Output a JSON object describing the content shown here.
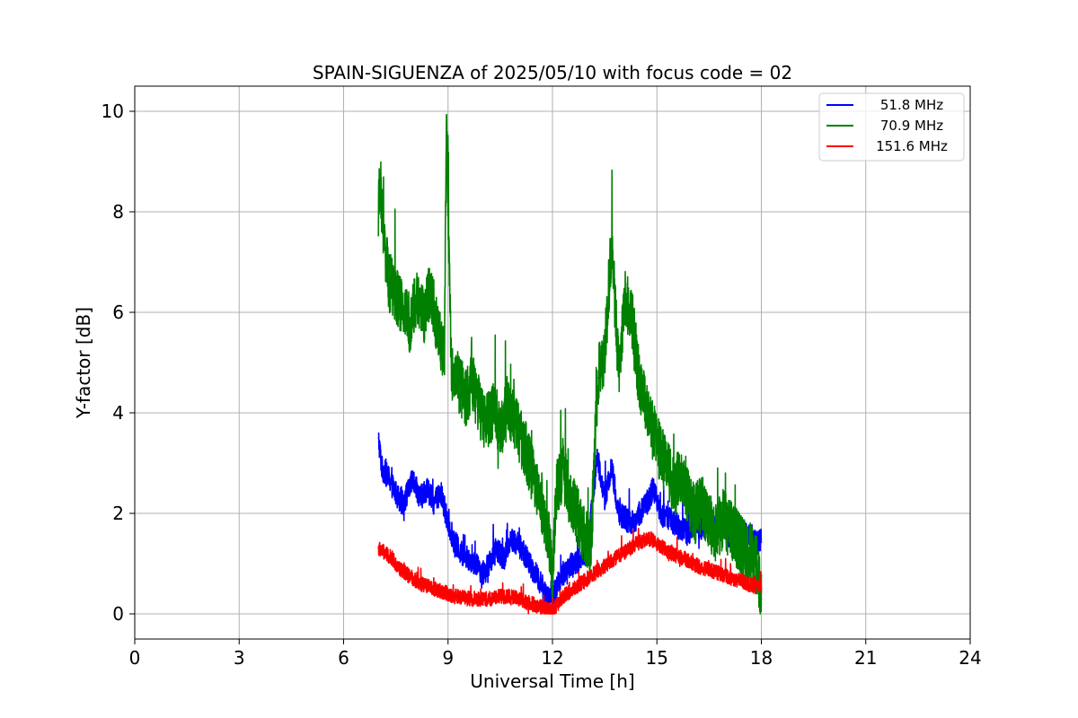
{
  "chart_data": {
    "type": "line",
    "title": "SPAIN-SIGUENZA of 2025/05/10 with focus code = 02",
    "xlabel": "Universal Time [h]",
    "ylabel": "Y-factor [dB]",
    "xlim": [
      0,
      24
    ],
    "ylim": [
      -0.5,
      10.5
    ],
    "xticks": [
      0,
      3,
      6,
      9,
      12,
      15,
      18,
      21,
      24
    ],
    "yticks": [
      0,
      2,
      4,
      6,
      8,
      10
    ],
    "xtick_labels": [
      "0",
      "3",
      "6",
      "9",
      "12",
      "15",
      "18",
      "21",
      "24"
    ],
    "ytick_labels": [
      "0",
      "2",
      "4",
      "6",
      "8",
      "10"
    ],
    "grid": true,
    "legend_position": "top-right",
    "series": [
      {
        "name": "51.8 MHz",
        "color": "#0000ff",
        "x": [
          7.0,
          7.1,
          7.3,
          7.5,
          7.7,
          7.9,
          8.0,
          8.2,
          8.4,
          8.6,
          8.8,
          9.0,
          9.2,
          9.4,
          9.6,
          9.8,
          10.0,
          10.2,
          10.4,
          10.6,
          10.8,
          11.0,
          11.2,
          11.4,
          11.6,
          11.8,
          12.0,
          12.2,
          12.4,
          12.6,
          12.8,
          13.0,
          13.2,
          13.3,
          13.5,
          13.7,
          13.9,
          14.1,
          14.3,
          14.5,
          14.7,
          14.9,
          15.1,
          15.3,
          15.5,
          15.7,
          15.9,
          16.1,
          16.3,
          16.5,
          16.7,
          16.9,
          17.1,
          17.3,
          17.5,
          17.7,
          17.9,
          18.0
        ],
        "y": [
          3.5,
          2.9,
          2.7,
          2.4,
          2.2,
          2.5,
          2.7,
          2.3,
          2.5,
          2.2,
          2.4,
          1.8,
          1.4,
          1.2,
          1.1,
          1.0,
          0.8,
          1.0,
          1.3,
          1.1,
          1.5,
          1.4,
          1.2,
          0.9,
          0.7,
          0.4,
          0.3,
          0.7,
          0.9,
          1.0,
          1.1,
          1.2,
          2.6,
          3.1,
          2.3,
          2.9,
          2.0,
          1.9,
          1.8,
          2.0,
          2.2,
          2.5,
          2.0,
          1.9,
          1.8,
          1.7,
          1.6,
          1.8,
          1.7,
          1.9,
          1.6,
          1.8,
          1.5,
          1.7,
          1.6,
          1.5,
          1.4,
          1.5
        ],
        "amplitude": 0.25
      },
      {
        "name": "70.9 MHz",
        "color": "#008000",
        "x": [
          7.0,
          7.05,
          7.15,
          7.3,
          7.5,
          7.7,
          7.9,
          8.1,
          8.3,
          8.5,
          8.7,
          8.9,
          8.95,
          9.1,
          9.3,
          9.5,
          9.7,
          9.9,
          10.1,
          10.3,
          10.5,
          10.7,
          10.9,
          11.1,
          11.3,
          11.5,
          11.7,
          11.9,
          12.0,
          12.1,
          12.3,
          12.5,
          12.7,
          12.9,
          13.1,
          13.3,
          13.5,
          13.7,
          13.9,
          14.1,
          14.3,
          14.5,
          14.7,
          14.9,
          15.1,
          15.3,
          15.5,
          15.7,
          15.9,
          16.1,
          16.3,
          16.5,
          16.7,
          16.9,
          17.1,
          17.3,
          17.5,
          17.7,
          17.9,
          18.0
        ],
        "y": [
          8.0,
          8.6,
          7.5,
          6.6,
          6.4,
          6.0,
          5.8,
          6.3,
          5.9,
          6.5,
          5.6,
          5.1,
          9.9,
          4.8,
          4.6,
          4.3,
          4.6,
          4.1,
          3.8,
          4.0,
          3.6,
          4.2,
          3.9,
          3.5,
          3.1,
          2.6,
          2.2,
          1.5,
          0.6,
          2.4,
          2.9,
          2.3,
          2.0,
          1.6,
          1.2,
          4.7,
          5.2,
          7.4,
          4.8,
          6.3,
          5.8,
          4.6,
          4.1,
          3.6,
          3.2,
          2.9,
          2.5,
          2.8,
          2.3,
          2.0,
          2.2,
          1.8,
          1.6,
          1.9,
          1.7,
          1.5,
          1.3,
          1.2,
          0.9,
          0.3
        ],
        "amplitude": 0.6
      },
      {
        "name": "151.6 MHz",
        "color": "#ff0000",
        "x": [
          7.0,
          7.2,
          7.4,
          7.6,
          7.8,
          8.0,
          8.2,
          8.4,
          8.6,
          8.8,
          9.0,
          9.2,
          9.4,
          9.6,
          9.8,
          10.0,
          10.2,
          10.4,
          10.6,
          10.8,
          11.0,
          11.2,
          11.4,
          11.6,
          11.8,
          12.0,
          12.2,
          12.4,
          12.6,
          12.8,
          13.0,
          13.2,
          13.4,
          13.6,
          13.8,
          14.0,
          14.2,
          14.4,
          14.6,
          14.8,
          15.0,
          15.2,
          15.4,
          15.6,
          15.8,
          16.0,
          16.2,
          16.4,
          16.6,
          16.8,
          17.0,
          17.2,
          17.4,
          17.6,
          17.8,
          18.0
        ],
        "y": [
          1.3,
          1.2,
          1.1,
          0.9,
          0.8,
          0.7,
          0.6,
          0.55,
          0.5,
          0.45,
          0.4,
          0.35,
          0.35,
          0.3,
          0.3,
          0.3,
          0.3,
          0.35,
          0.35,
          0.35,
          0.3,
          0.25,
          0.2,
          0.15,
          0.1,
          0.05,
          0.25,
          0.4,
          0.5,
          0.6,
          0.7,
          0.8,
          0.9,
          1.0,
          1.1,
          1.2,
          1.3,
          1.4,
          1.45,
          1.5,
          1.4,
          1.3,
          1.2,
          1.15,
          1.1,
          1.0,
          0.95,
          0.9,
          0.85,
          0.8,
          0.75,
          0.7,
          0.65,
          0.6,
          0.55,
          0.5
        ],
        "amplitude": 0.15
      }
    ]
  }
}
